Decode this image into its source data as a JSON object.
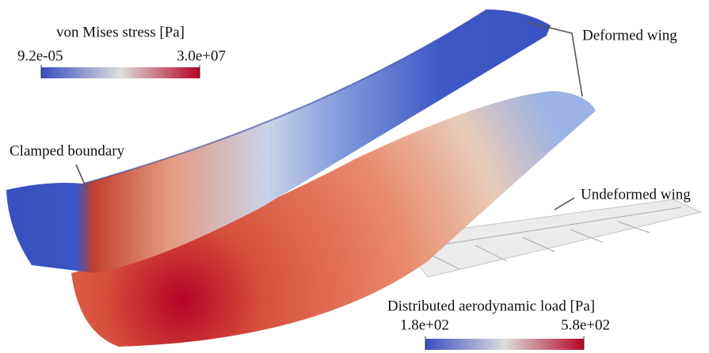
{
  "stress_colorbar": {
    "title": "von Mises stress [Pa]",
    "min_label": "9.2e-05",
    "max_label": "3.0e+07"
  },
  "load_colorbar": {
    "title": "Distributed aerodynamic load [Pa]",
    "min_label": "1.8e+02",
    "max_label": "5.8e+02"
  },
  "annotations": {
    "deformed": "Deformed wing",
    "clamped": "Clamped boundary",
    "undeformed": "Undeformed wing"
  }
}
